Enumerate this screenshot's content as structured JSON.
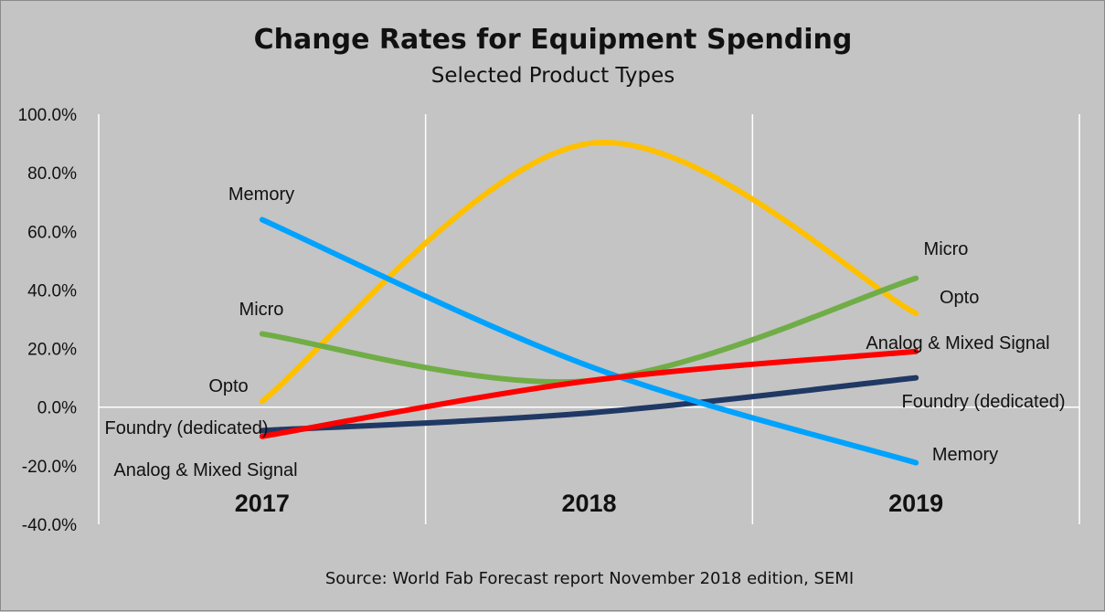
{
  "chart_data": {
    "type": "line",
    "title": "Change Rates for Equipment Spending",
    "subtitle": "Selected Product Types",
    "source": "Source: World Fab Forecast report November 2018 edition, SEMI",
    "categories": [
      "2017",
      "2018",
      "2019"
    ],
    "ylim": [
      -40,
      100
    ],
    "yticks": [
      "100.0%",
      "80.0%",
      "60.0%",
      "40.0%",
      "20.0%",
      "0.0%",
      "-20.0%",
      "-40.0%"
    ],
    "ytick_values": [
      100,
      80,
      60,
      40,
      20,
      0,
      -20,
      -40
    ],
    "grid": true,
    "smooth": true,
    "series": [
      {
        "name": "Opto",
        "values": [
          2,
          90,
          32
        ],
        "color": "#ffc000",
        "start_label": "Opto",
        "end_label": "Opto"
      },
      {
        "name": "Foundry (dedicated)",
        "values": [
          -8,
          -2,
          10
        ],
        "color": "#203864",
        "start_label": "Foundry (dedicated)",
        "end_label": "Foundry (dedicated)"
      },
      {
        "name": "Micro",
        "values": [
          25,
          9,
          44
        ],
        "color": "#70ad47",
        "start_label": "Micro",
        "end_label": "Micro"
      },
      {
        "name": "Memory",
        "values": [
          64,
          14,
          -19
        ],
        "color": "#00a2ff",
        "start_label": "Memory",
        "end_label": "Memory"
      },
      {
        "name": "Analog & Mixed Signal",
        "values": [
          -10,
          9,
          19
        ],
        "color": "#ff0000",
        "start_label": "Analog & Mixed Signal",
        "end_label": "Analog & Mixed Signal"
      }
    ]
  }
}
